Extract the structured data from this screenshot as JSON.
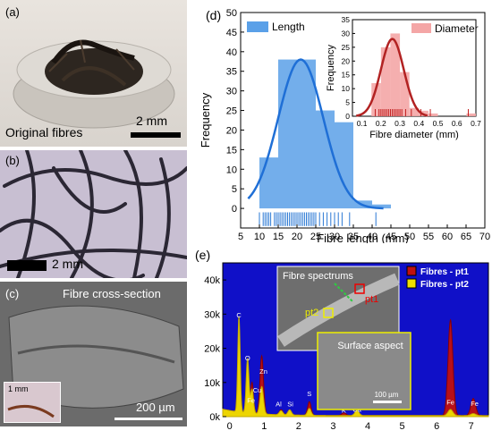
{
  "panels": {
    "a": {
      "label": "(a)",
      "caption": "Original fibres",
      "scale": "2 mm"
    },
    "b": {
      "label": "(b)",
      "scale": "2 mm"
    },
    "c": {
      "label": "(c)",
      "title": "Fibre cross-section",
      "scale": "200 µm",
      "inset_scale": "1 mm"
    },
    "d": {
      "label": "(d)"
    },
    "e": {
      "label": "(e)"
    }
  },
  "colors": {
    "length": "#5aa0e8",
    "length_curve": "#1f6fd6",
    "diameter": "#f4a6a6",
    "diameter_curve": "#b22222",
    "eds_bg": "#1010c8"
  },
  "chart_data": [
    {
      "type": "bar",
      "title": "",
      "xlabel": "Fibre length (mm)",
      "ylabel": "Frequency",
      "xlim": [
        5,
        70
      ],
      "ylim": [
        -5,
        50
      ],
      "xticks": [
        "5",
        "10",
        "15",
        "20",
        "25",
        "30",
        "35",
        "40",
        "45",
        "50",
        "55",
        "60",
        "65",
        "70"
      ],
      "yticks": [
        "0",
        "5",
        "10",
        "15",
        "20",
        "25",
        "30",
        "35",
        "40",
        "45",
        "50"
      ],
      "legend": "top-left",
      "series": [
        {
          "name": "Length",
          "bins": [
            [
              10,
              15,
              13
            ],
            [
              15,
              20,
              38
            ],
            [
              20,
              25,
              38
            ],
            [
              25,
              30,
              25
            ],
            [
              30,
              35,
              22
            ],
            [
              35,
              40,
              2
            ],
            [
              40,
              45,
              1
            ]
          ]
        }
      ],
      "fit": {
        "type": "normal",
        "mean": 21,
        "sd": 6,
        "peak": 38
      },
      "rug": [
        10,
        11,
        11.5,
        12,
        12.5,
        13,
        14,
        14.5,
        15,
        15.5,
        16,
        16.5,
        17,
        17.5,
        18,
        18.5,
        19,
        19.5,
        20,
        20.5,
        21,
        21.5,
        22,
        22.5,
        23,
        23.5,
        24,
        24.5,
        25,
        26,
        27,
        28,
        29,
        30,
        31,
        32,
        34,
        41
      ]
    },
    {
      "type": "bar",
      "title": "",
      "xlabel": "Fibre diameter (mm)",
      "ylabel": "Frequency",
      "xlim": [
        0.05,
        0.7
      ],
      "ylim": [
        0,
        35
      ],
      "xticks": [
        "0.1",
        "0.2",
        "0.3",
        "0.4",
        "0.5",
        "0.6",
        "0.7"
      ],
      "yticks": [
        "0",
        "5",
        "10",
        "15",
        "20",
        "25",
        "30",
        "35"
      ],
      "legend": "top-right",
      "series": [
        {
          "name": "Diameter",
          "bins": [
            [
              0.15,
              0.2,
              12
            ],
            [
              0.2,
              0.25,
              25
            ],
            [
              0.25,
              0.3,
              30
            ],
            [
              0.3,
              0.35,
              16
            ],
            [
              0.35,
              0.4,
              3
            ],
            [
              0.4,
              0.45,
              2
            ],
            [
              0.45,
              0.5,
              1
            ],
            [
              0.65,
              0.7,
              1
            ]
          ]
        }
      ],
      "fit": {
        "type": "normal",
        "mean": 0.26,
        "sd": 0.06,
        "peak": 28
      },
      "rug": [
        0.17,
        0.19,
        0.2,
        0.21,
        0.22,
        0.23,
        0.24,
        0.25,
        0.26,
        0.27,
        0.28,
        0.29,
        0.3,
        0.31,
        0.33,
        0.36,
        0.41,
        0.46,
        0.66
      ]
    },
    {
      "type": "line",
      "title": "",
      "xlabel": "",
      "ylabel": "",
      "xlim": [
        -0.2,
        7.5
      ],
      "ylim": [
        0,
        45000
      ],
      "xticks": [
        "0",
        "1",
        "2",
        "3",
        "4",
        "5",
        "6",
        "7"
      ],
      "yticks": [
        "0k",
        "10k",
        "20k",
        "30k",
        "40k"
      ],
      "legend": "top-right",
      "series": [
        {
          "name": "Fibres - pt1",
          "color": "#8b0000",
          "fill": "#c01010",
          "peaks": [
            [
              0.27,
              26000,
              0.035
            ],
            [
              0.52,
              14000,
              0.04
            ],
            [
              0.65,
              9000,
              0.04
            ],
            [
              0.93,
              17000,
              0.05
            ],
            [
              1.49,
              1500,
              0.05
            ],
            [
              1.74,
              1500,
              0.05
            ],
            [
              2.31,
              4000,
              0.05
            ],
            [
              3.31,
              800,
              0.06
            ],
            [
              3.69,
              1200,
              0.06
            ],
            [
              6.4,
              28000,
              0.07
            ],
            [
              7.06,
              5000,
              0.07
            ]
          ]
        },
        {
          "name": "Fibres - pt2",
          "color": "#c8b400",
          "fill": "#f0e000",
          "peaks": [
            [
              0.27,
              28000,
              0.035
            ],
            [
              0.52,
              16000,
              0.04
            ],
            [
              0.65,
              7000,
              0.04
            ],
            [
              0.93,
              8000,
              0.05
            ],
            [
              1.49,
              1200,
              0.05
            ],
            [
              1.74,
              1500,
              0.05
            ],
            [
              2.31,
              2000,
              0.05
            ],
            [
              3.69,
              1500,
              0.06
            ],
            [
              6.4,
              1800,
              0.07
            ],
            [
              7.06,
              600,
              0.07
            ]
          ]
        }
      ],
      "element_labels": [
        {
          "text": "C",
          "x": 0.27,
          "y": 29000
        },
        {
          "text": "O",
          "x": 0.52,
          "y": 16500
        },
        {
          "text": "Cu",
          "x": 0.8,
          "y": 7000
        },
        {
          "text": "Zn",
          "x": 0.98,
          "y": 12500
        },
        {
          "text": "Fe",
          "x": 0.62,
          "y": 4000
        },
        {
          "text": "Al",
          "x": 1.42,
          "y": 3000
        },
        {
          "text": "Si",
          "x": 1.76,
          "y": 3000
        },
        {
          "text": "S",
          "x": 2.31,
          "y": 6000
        },
        {
          "text": "K",
          "x": 3.31,
          "y": 1200
        },
        {
          "text": "Ca",
          "x": 3.69,
          "y": 1500
        },
        {
          "text": "Fe",
          "x": 6.4,
          "y": 3500
        },
        {
          "text": "Fe",
          "x": 7.1,
          "y": 3200
        }
      ],
      "inset": {
        "title": "Fibre spectrums",
        "markers": [
          "pt1",
          "pt2"
        ],
        "zoom_label": "Surface aspect",
        "scale": "100 µm"
      }
    }
  ]
}
